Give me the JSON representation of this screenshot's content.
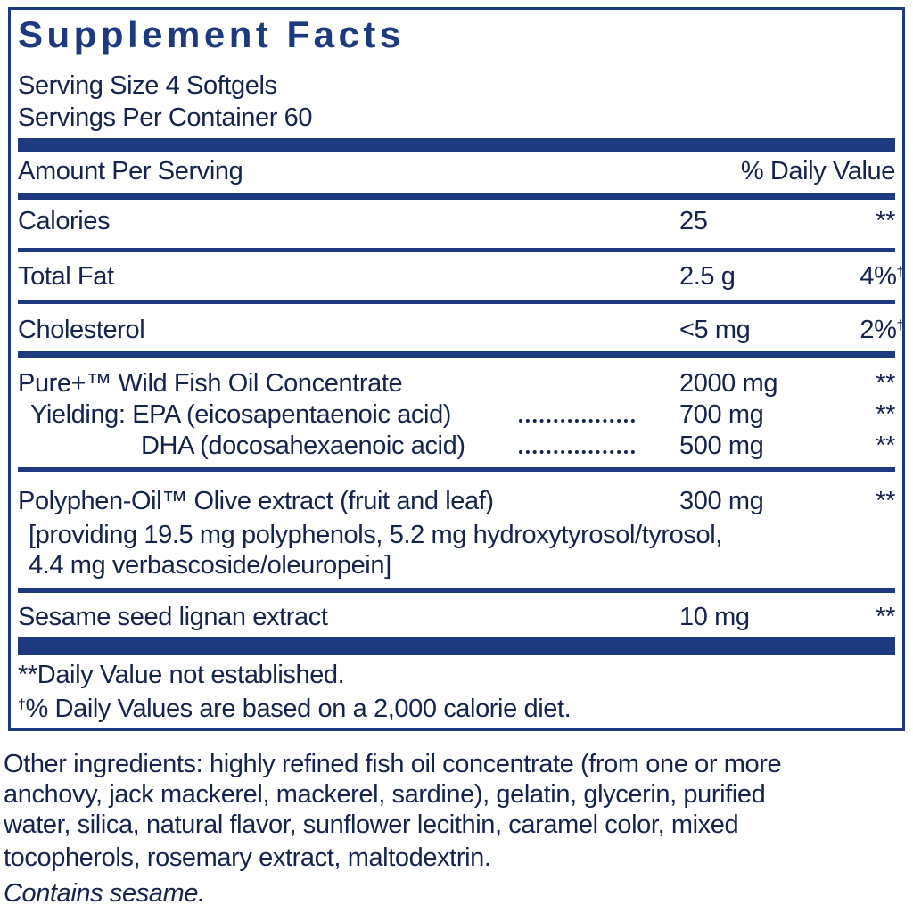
{
  "header": {
    "title": "Supplement Facts",
    "serving_size": "Serving Size 4 Softgels",
    "servings_per_container": "Servings Per Container 60"
  },
  "table": {
    "column_headers": [
      "Amount Per Serving",
      "% Daily Value"
    ],
    "rows": [
      {
        "label": "Calories",
        "amount": "25",
        "dv": "**"
      },
      {
        "label": "Total Fat",
        "amount": "2.5 g",
        "dv": "4%",
        "dv_mark": "†"
      },
      {
        "label": "Cholesterol",
        "amount": "<5 mg",
        "dv": "2%",
        "dv_mark": "†"
      },
      {
        "label": "Pure+™ Wild Fish Oil Concentrate",
        "amount": "2000 mg",
        "dv": "**"
      },
      {
        "label": "Yielding: EPA (eicosapentaenoic acid)",
        "amount": "700 mg",
        "dv": "**"
      },
      {
        "label": "DHA (docosahexaenoic acid)",
        "amount": "500 mg",
        "dv": "**"
      },
      {
        "label": "Polyphen-Oil™ Olive extract (fruit and leaf)",
        "amount": "300 mg",
        "dv": "**",
        "detail": [
          "[providing 19.5 mg polyphenols, 5.2 mg hydroxytyrosol/tyrosol,",
          "4.4 mg verbascoside/oleuropein]"
        ]
      },
      {
        "label": "Sesame seed lignan extract",
        "amount": "10 mg",
        "dv": "**"
      }
    ]
  },
  "footnotes": [
    {
      "text": "**Daily Value not established."
    },
    {
      "mark": "†",
      "text": "% Daily Values are based on a 2,000 calorie diet."
    }
  ],
  "other_ingredients": [
    "Other ingredients: highly refined fish oil concentrate (from one or more",
    "anchovy, jack mackerel, mackerel, sardine), gelatin, glycerin, purified",
    "water, silica, natural flavor, sunflower lecithin, caramel color, mixed",
    "tocopherols, rosemary extract, maltodextrin."
  ],
  "allergen": "Contains sesame."
}
